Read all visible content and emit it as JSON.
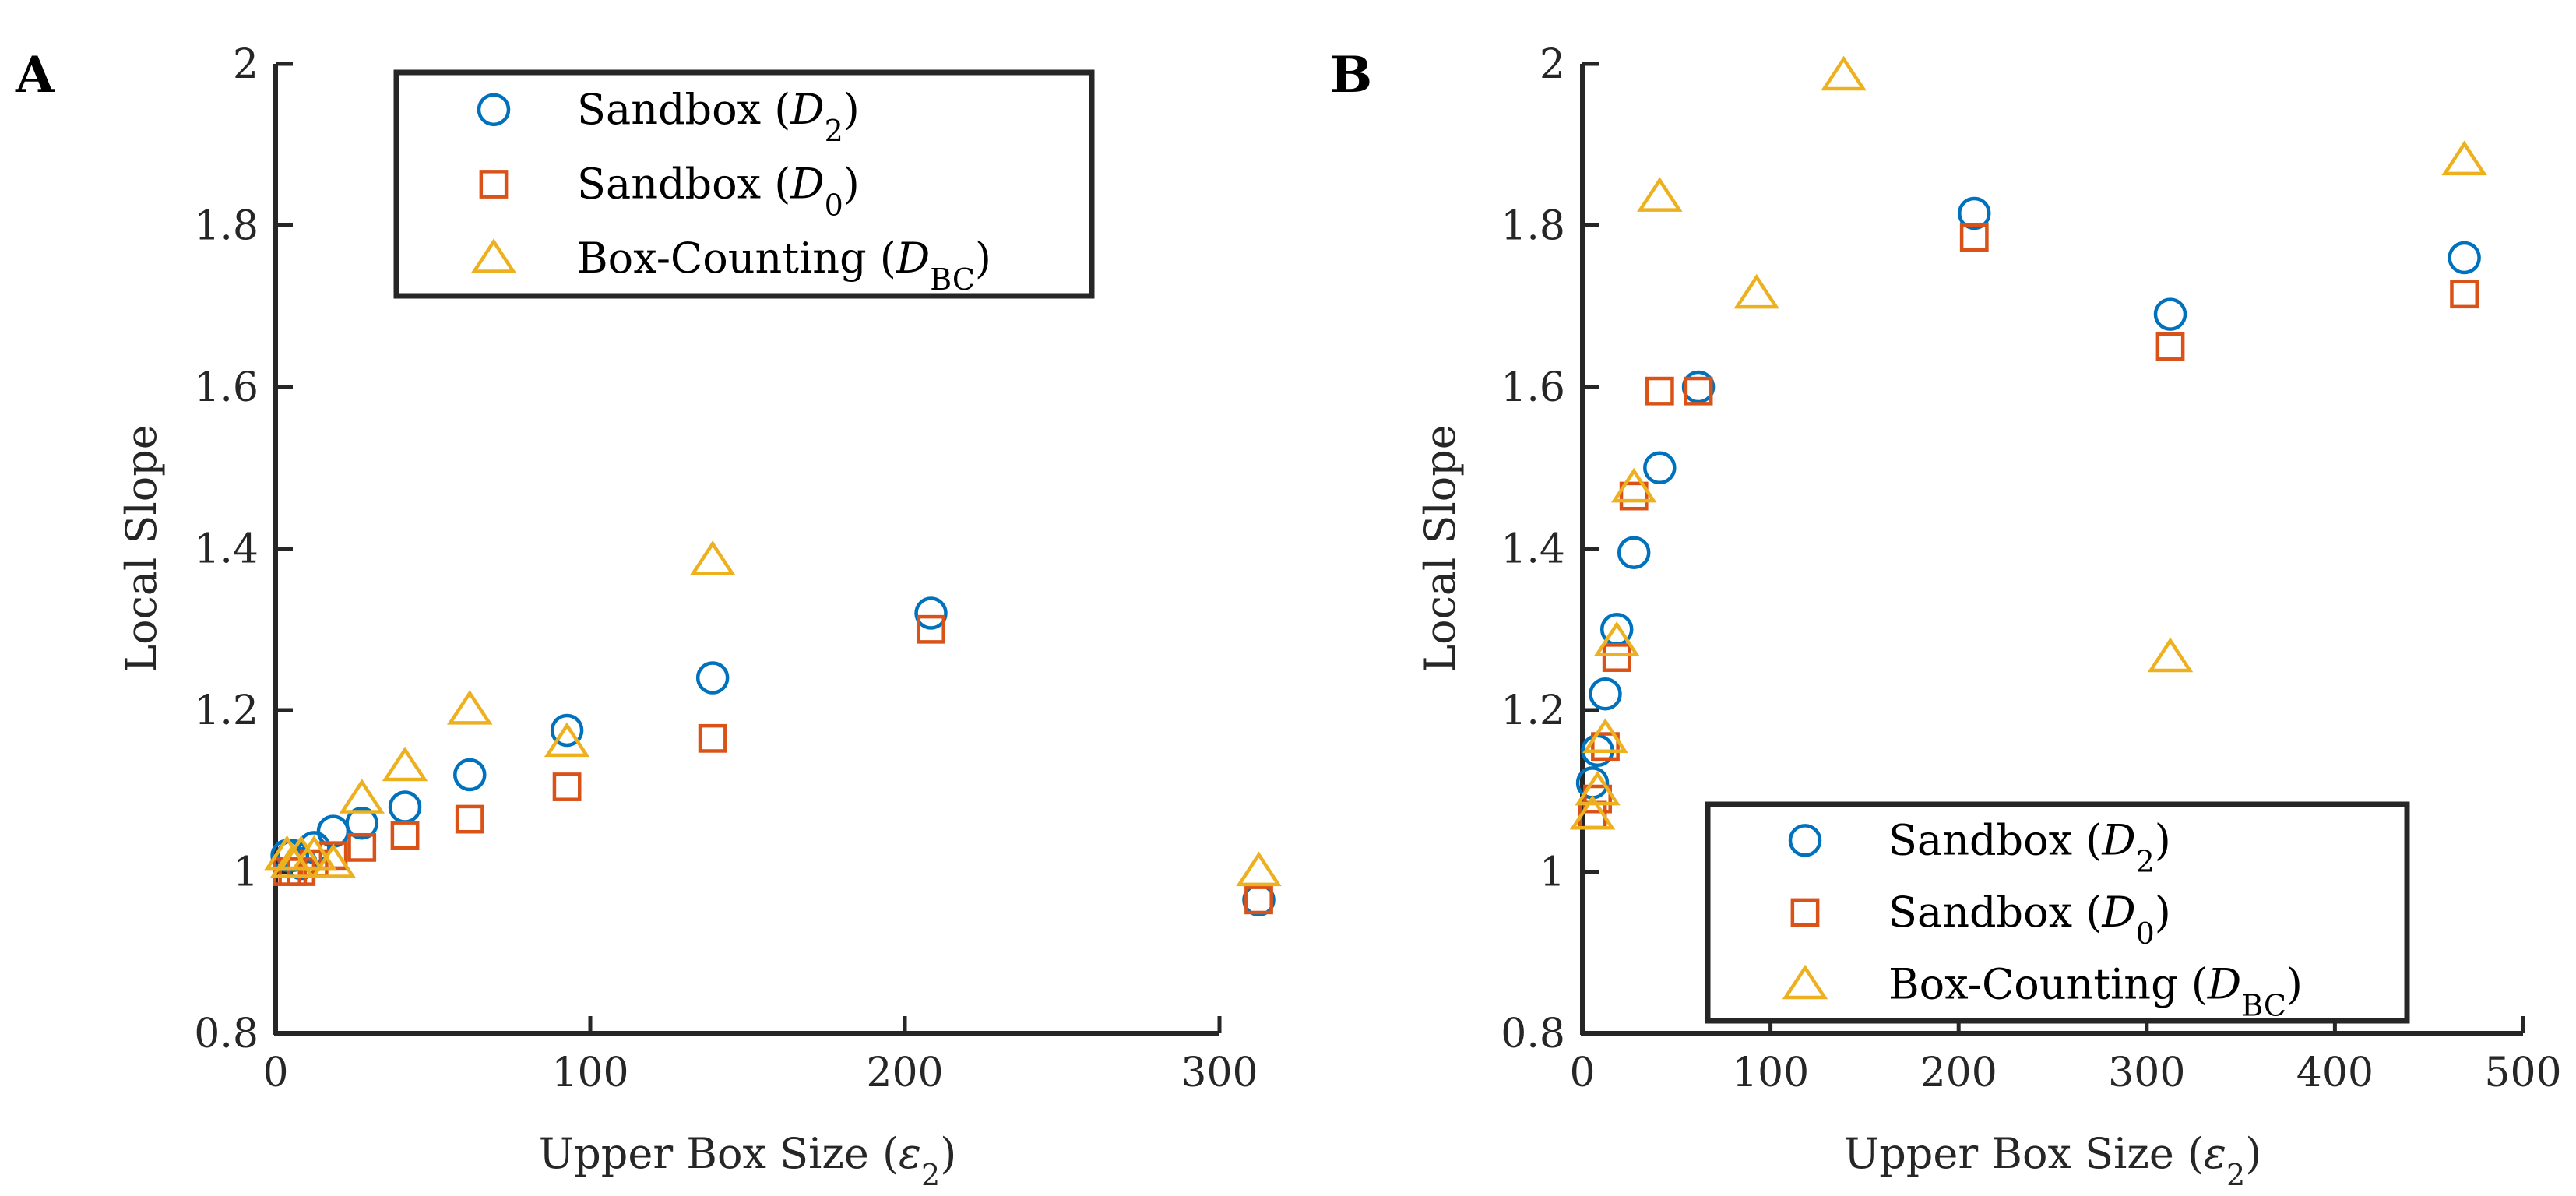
{
  "chart_data": [
    {
      "type": "scatter",
      "panel": "A",
      "xlabel_text": "Upper Box Size (",
      "xlabel_math": "ε",
      "xlabel_sub": "2",
      "xlabel_close": ")",
      "ylabel": "Local Slope",
      "xlim": [
        0,
        300
      ],
      "ylim": [
        0.8,
        2
      ],
      "xticks": [
        0,
        100,
        200,
        300
      ],
      "yticks": [
        0.8,
        1,
        1.2,
        1.4,
        1.6,
        1.8,
        2
      ],
      "ytick_labels": [
        "0.8",
        "1",
        "1.2",
        "1.4",
        "1.6",
        "1.8",
        "2"
      ],
      "legend_position": "top-right",
      "series": [
        {
          "name_text": "Sandbox (",
          "name_math": "D",
          "name_sub": "2",
          "name_close": ")",
          "marker": "circle",
          "color": "#0072BD",
          "x": [
            3.6,
            5.4,
            8.1,
            12.2,
            18.3,
            27.4,
            41.1,
            61.7,
            92.6,
            138.9,
            208.3,
            312.5
          ],
          "y": [
            1.02,
            1.02,
            1.01,
            1.03,
            1.05,
            1.06,
            1.08,
            1.12,
            1.175,
            1.24,
            1.32,
            0.965
          ]
        },
        {
          "name_text": "Sandbox (",
          "name_math": "D",
          "name_sub": "0",
          "name_close": ")",
          "marker": "square",
          "color": "#D95319",
          "x": [
            3.6,
            5.4,
            8.1,
            12.2,
            18.3,
            27.4,
            41.1,
            61.7,
            92.6,
            138.9,
            208.3,
            312.5
          ],
          "y": [
            1.0,
            1.0,
            1.0,
            1.01,
            1.02,
            1.03,
            1.045,
            1.065,
            1.105,
            1.165,
            1.3,
            0.965
          ]
        },
        {
          "name_text": "Box-Counting (",
          "name_math": "D",
          "name_sub": "BC",
          "name_close": ")",
          "marker": "triangle",
          "color": "#EDB120",
          "x": [
            3.6,
            5.4,
            8.1,
            12.2,
            18.3,
            27.4,
            41.1,
            61.7,
            92.6,
            138.9,
            312.5
          ],
          "y": [
            1.02,
            1.01,
            1.02,
            1.02,
            1.01,
            1.09,
            1.13,
            1.2,
            1.16,
            1.385,
            1.0
          ]
        }
      ]
    },
    {
      "type": "scatter",
      "panel": "B",
      "xlabel_text": "Upper Box Size (",
      "xlabel_math": "ε",
      "xlabel_sub": "2",
      "xlabel_close": ")",
      "ylabel": "Local Slope",
      "xlim": [
        0,
        500
      ],
      "ylim": [
        0.8,
        2
      ],
      "xticks": [
        0,
        100,
        200,
        300,
        400,
        500
      ],
      "yticks": [
        0.8,
        1,
        1.2,
        1.4,
        1.6,
        1.8,
        2
      ],
      "ytick_labels": [
        "0.8",
        "1",
        "1.2",
        "1.4",
        "1.6",
        "1.8",
        "2"
      ],
      "legend_position": "bottom-right",
      "series": [
        {
          "name_text": "Sandbox (",
          "name_math": "D",
          "name_sub": "2",
          "name_close": ")",
          "marker": "circle",
          "color": "#0072BD",
          "x": [
            5.4,
            8.1,
            12.2,
            18.3,
            27.4,
            41.1,
            61.7,
            208.3,
            312.5,
            468.8
          ],
          "y": [
            1.11,
            1.15,
            1.22,
            1.3,
            1.395,
            1.5,
            1.6,
            1.815,
            1.69,
            1.76
          ]
        },
        {
          "name_text": "Sandbox (",
          "name_math": "D",
          "name_sub": "0",
          "name_close": ")",
          "marker": "square",
          "color": "#D95319",
          "x": [
            5.4,
            8.1,
            12.2,
            18.3,
            27.4,
            41.1,
            61.7,
            208.3,
            312.5,
            468.8
          ],
          "y": [
            1.07,
            1.09,
            1.155,
            1.265,
            1.465,
            1.595,
            1.595,
            1.785,
            1.65,
            1.715
          ]
        },
        {
          "name_text": "Box-Counting (",
          "name_math": "D",
          "name_sub": "BC",
          "name_close": ")",
          "marker": "triangle",
          "color": "#EDB120",
          "x": [
            5.4,
            8.1,
            12.2,
            18.3,
            27.4,
            41.1,
            92.6,
            138.9,
            312.5,
            468.8
          ],
          "y": [
            1.07,
            1.1,
            1.165,
            1.285,
            1.475,
            1.835,
            1.715,
            1.985,
            1.265,
            1.88
          ]
        }
      ]
    }
  ]
}
